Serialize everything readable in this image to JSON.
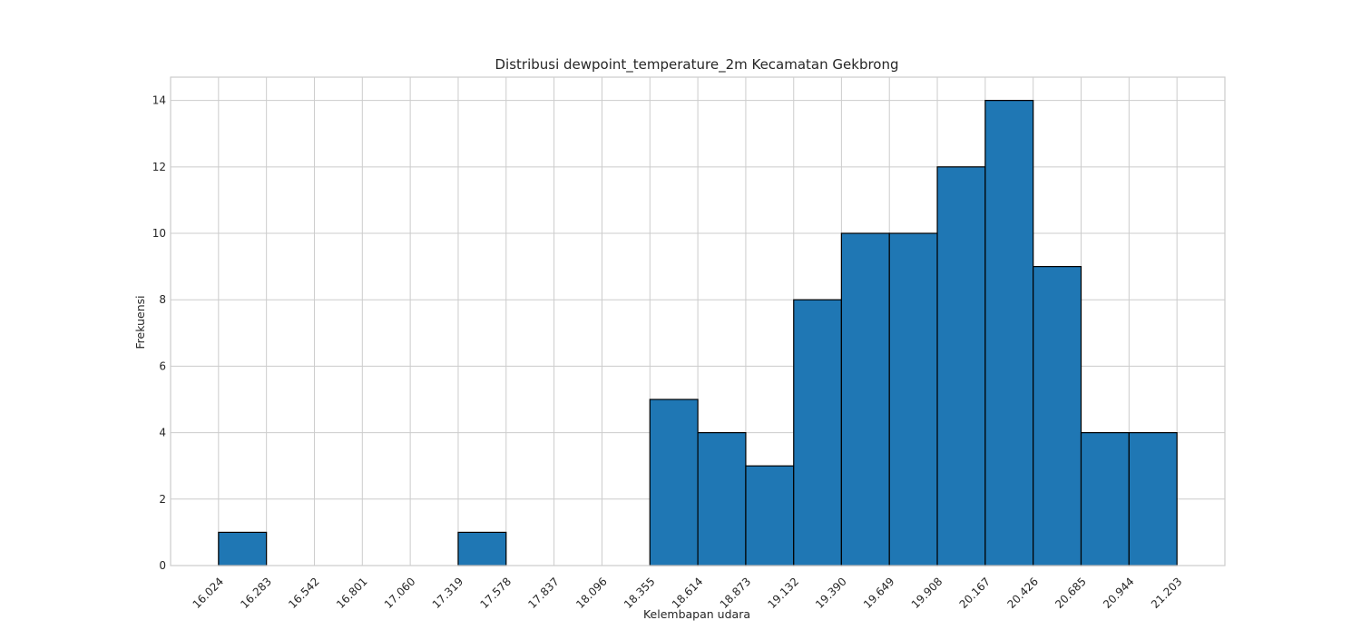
{
  "chart_data": {
    "type": "bar",
    "title": "Distribusi dewpoint_temperature_2m Kecamatan Gekbrong",
    "xlabel": "Kelembapan udara",
    "ylabel": "Frekuensi",
    "bin_edges": [
      16.024,
      16.283,
      16.542,
      16.801,
      17.06,
      17.319,
      17.578,
      17.837,
      18.096,
      18.355,
      18.614,
      18.873,
      19.132,
      19.39,
      19.649,
      19.908,
      20.167,
      20.426,
      20.685,
      20.944,
      21.203
    ],
    "x_tick_labels": [
      "16.024",
      "16.283",
      "16.542",
      "16.801",
      "17.060",
      "17.319",
      "17.578",
      "17.837",
      "18.096",
      "18.355",
      "18.614",
      "18.873",
      "19.132",
      "19.390",
      "19.649",
      "19.908",
      "20.167",
      "20.426",
      "20.685",
      "20.944",
      "21.203"
    ],
    "values": [
      1,
      0,
      0,
      0,
      0,
      1,
      0,
      0,
      0,
      5,
      4,
      3,
      8,
      10,
      10,
      12,
      14,
      9,
      4,
      4
    ],
    "y_ticks": [
      0,
      2,
      4,
      6,
      8,
      10,
      12,
      14
    ],
    "xlim": [
      15.765,
      21.462
    ],
    "ylim": [
      0,
      14.7
    ],
    "grid": true,
    "bar_color": "#1f77b4",
    "edge_color": "#000000",
    "grid_color": "#cccccc"
  }
}
